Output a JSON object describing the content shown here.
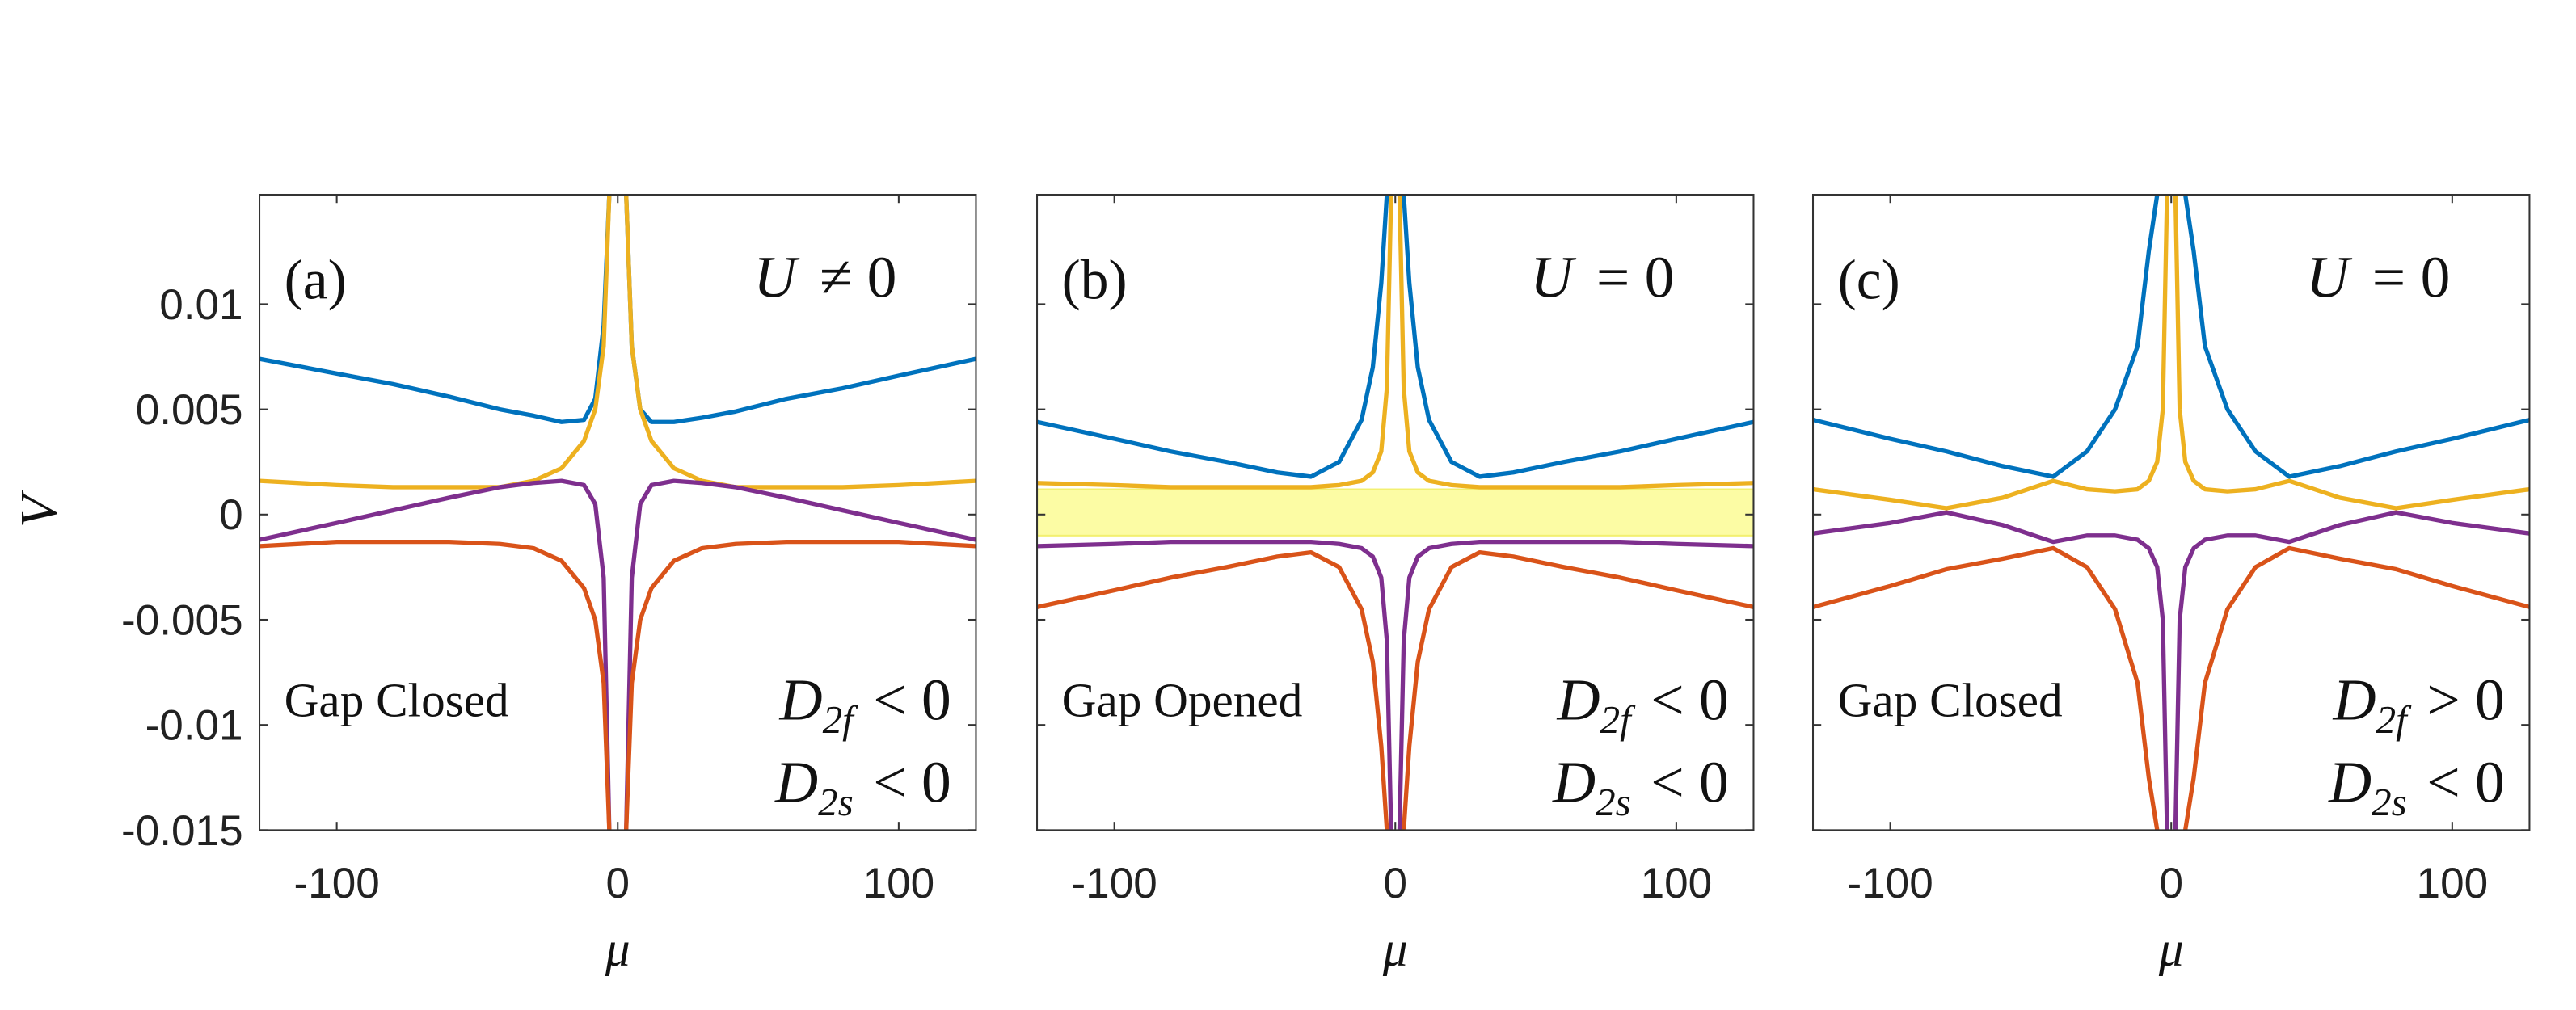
{
  "chart_data": [
    {
      "type": "line",
      "label": "(a)",
      "u_note": {
        "var": "U",
        "rel": "≠ 0"
      },
      "gap_note": "Gap Closed",
      "conditions": [
        {
          "var": "D",
          "sub": "2f",
          "rel": "< 0"
        },
        {
          "var": "D",
          "sub": "2s",
          "rel": "< 0"
        }
      ],
      "xlabel": "μ",
      "ylabel": "V",
      "xlim": [
        -127.5,
        127.5
      ],
      "ylim": [
        -0.015,
        0.0152
      ],
      "xticks": [
        -100,
        0,
        100
      ],
      "yticks": [
        -0.015,
        -0.01,
        -0.005,
        0,
        0.005,
        0.01
      ],
      "x": [
        -127.5,
        -100,
        -80,
        -60,
        -42,
        -30,
        -20,
        -12,
        -8,
        -5,
        -3,
        -1.5,
        0,
        1.5,
        3,
        5,
        8,
        12,
        20,
        30,
        42,
        60,
        80,
        100,
        127.5
      ],
      "series": [
        {
          "color": "#0072BD",
          "values": [
            0.0074,
            0.0067,
            0.0062,
            0.0056,
            0.005,
            0.0047,
            0.0044,
            0.0045,
            0.0055,
            0.009,
            0.0152,
            null,
            null,
            null,
            0.0152,
            0.008,
            0.005,
            0.0044,
            0.0044,
            0.0046,
            0.0049,
            0.0055,
            0.006,
            0.0066,
            0.0074
          ]
        },
        {
          "color": "#EDB120",
          "values": [
            0.0016,
            0.0014,
            0.0013,
            0.0013,
            0.0013,
            0.0016,
            0.0022,
            0.0035,
            0.005,
            0.008,
            0.0152,
            null,
            null,
            null,
            0.0152,
            0.008,
            0.005,
            0.0035,
            0.0022,
            0.0016,
            0.0013,
            0.0013,
            0.0013,
            0.0014,
            0.0016
          ]
        },
        {
          "color": "#7E2F8E",
          "values": [
            -0.0012,
            -0.0004,
            0.0002,
            0.0008,
            0.0013,
            0.0015,
            0.0016,
            0.0014,
            0.0005,
            -0.003,
            -0.015,
            null,
            null,
            null,
            -0.015,
            -0.003,
            0.0005,
            0.0014,
            0.0016,
            0.0015,
            0.0013,
            0.0008,
            0.0002,
            -0.0004,
            -0.0012
          ]
        },
        {
          "color": "#D95319",
          "values": [
            -0.0015,
            -0.0013,
            -0.0013,
            -0.0013,
            -0.0014,
            -0.0016,
            -0.0022,
            -0.0035,
            -0.005,
            -0.008,
            -0.015,
            null,
            null,
            null,
            -0.015,
            -0.008,
            -0.005,
            -0.0035,
            -0.0022,
            -0.0016,
            -0.0014,
            -0.0013,
            -0.0013,
            -0.0013,
            -0.0015
          ]
        }
      ]
    },
    {
      "type": "line",
      "label": "(b)",
      "u_note": {
        "var": "U",
        "rel": "= 0"
      },
      "gap_note": "Gap Opened",
      "conditions": [
        {
          "var": "D",
          "sub": "2f",
          "rel": "< 0"
        },
        {
          "var": "D",
          "sub": "2s",
          "rel": "< 0"
        }
      ],
      "xlabel": "μ",
      "xlim": [
        -127.5,
        127.5
      ],
      "ylim": [
        -0.015,
        0.0152
      ],
      "xticks": [
        -100,
        0,
        100
      ],
      "yticks": [
        -0.015,
        -0.01,
        -0.005,
        0,
        0.005,
        0.01
      ],
      "bands": [
        {
          "y": [
            -0.001,
            0.0012
          ],
          "color": "#fcfca4"
        }
      ],
      "x": [
        -127.5,
        -100,
        -80,
        -60,
        -42,
        -30,
        -20,
        -12,
        -8,
        -5,
        -3,
        -1.5,
        0,
        1.5,
        3,
        5,
        8,
        12,
        20,
        30,
        42,
        60,
        80,
        100,
        127.5
      ],
      "series": [
        {
          "color": "#0072BD",
          "values": [
            0.0044,
            0.0036,
            0.003,
            0.0025,
            0.002,
            0.0018,
            0.0025,
            0.0045,
            0.007,
            0.011,
            0.0152,
            null,
            null,
            null,
            0.0152,
            0.011,
            0.007,
            0.0045,
            0.0025,
            0.0018,
            0.002,
            0.0025,
            0.003,
            0.0036,
            0.0044
          ]
        },
        {
          "color": "#EDB120",
          "values": [
            0.0015,
            0.0014,
            0.0013,
            0.0013,
            0.0013,
            0.0013,
            0.0014,
            0.0016,
            0.002,
            0.003,
            0.006,
            0.0152,
            null,
            0.0152,
            0.006,
            0.003,
            0.002,
            0.0016,
            0.0014,
            0.0013,
            0.0013,
            0.0013,
            0.0013,
            0.0014,
            0.0015
          ]
        },
        {
          "color": "#7E2F8E",
          "values": [
            -0.0015,
            -0.0014,
            -0.0013,
            -0.0013,
            -0.0013,
            -0.0013,
            -0.0014,
            -0.0016,
            -0.002,
            -0.003,
            -0.006,
            -0.015,
            null,
            -0.015,
            -0.006,
            -0.003,
            -0.002,
            -0.0016,
            -0.0014,
            -0.0013,
            -0.0013,
            -0.0013,
            -0.0013,
            -0.0014,
            -0.0015
          ]
        },
        {
          "color": "#D95319",
          "values": [
            -0.0044,
            -0.0036,
            -0.003,
            -0.0025,
            -0.002,
            -0.0018,
            -0.0025,
            -0.0045,
            -0.007,
            -0.011,
            -0.015,
            null,
            null,
            null,
            -0.015,
            -0.011,
            -0.007,
            -0.0045,
            -0.0025,
            -0.0018,
            -0.002,
            -0.0025,
            -0.003,
            -0.0036,
            -0.0044
          ]
        }
      ]
    },
    {
      "type": "line",
      "label": "(c)",
      "u_note": {
        "var": "U",
        "rel": "= 0"
      },
      "gap_note": "Gap Closed",
      "conditions": [
        {
          "var": "D",
          "sub": "2f",
          "rel": "> 0"
        },
        {
          "var": "D",
          "sub": "2s",
          "rel": "< 0"
        }
      ],
      "xlabel": "μ",
      "xlim": [
        -127.5,
        127.5
      ],
      "ylim": [
        -0.015,
        0.0152
      ],
      "xticks": [
        -100,
        0,
        100
      ],
      "yticks": [
        -0.015,
        -0.01,
        -0.005,
        0,
        0.005,
        0.01
      ],
      "x": [
        -127.5,
        -100,
        -80,
        -60,
        -42,
        -30,
        -20,
        -12,
        -8,
        -5,
        -3,
        -1.5,
        0,
        1.5,
        3,
        5,
        8,
        12,
        20,
        30,
        42,
        60,
        80,
        100,
        127.5
      ],
      "series": [
        {
          "color": "#0072BD",
          "values": [
            0.0045,
            0.0036,
            0.003,
            0.0023,
            0.0018,
            0.003,
            0.005,
            0.008,
            0.0125,
            0.0152,
            null,
            null,
            null,
            null,
            null,
            0.0152,
            0.0125,
            0.008,
            0.005,
            0.003,
            0.0018,
            0.0023,
            0.003,
            0.0036,
            0.0045
          ]
        },
        {
          "color": "#EDB120",
          "values": [
            0.0012,
            0.0007,
            0.0003,
            0.0008,
            0.0016,
            0.0012,
            0.0011,
            0.0012,
            0.0016,
            0.0025,
            0.005,
            0.0152,
            null,
            0.0152,
            0.005,
            0.0025,
            0.0016,
            0.0012,
            0.0011,
            0.0012,
            0.0016,
            0.0008,
            0.0003,
            0.0007,
            0.0012
          ]
        },
        {
          "color": "#7E2F8E",
          "values": [
            -0.0009,
            -0.0004,
            0.0001,
            -0.0005,
            -0.0013,
            -0.001,
            -0.001,
            -0.0012,
            -0.0016,
            -0.0025,
            -0.005,
            -0.015,
            null,
            -0.015,
            -0.005,
            -0.0025,
            -0.0016,
            -0.0012,
            -0.001,
            -0.001,
            -0.0013,
            -0.0005,
            0.0001,
            -0.0004,
            -0.0009
          ]
        },
        {
          "color": "#D95319",
          "values": [
            -0.0044,
            -0.0034,
            -0.0026,
            -0.0021,
            -0.0016,
            -0.0025,
            -0.0045,
            -0.008,
            -0.0125,
            -0.015,
            null,
            null,
            null,
            null,
            null,
            -0.015,
            -0.0125,
            -0.008,
            -0.0045,
            -0.0025,
            -0.0016,
            -0.0021,
            -0.0026,
            -0.0034,
            -0.0044
          ]
        }
      ]
    }
  ]
}
